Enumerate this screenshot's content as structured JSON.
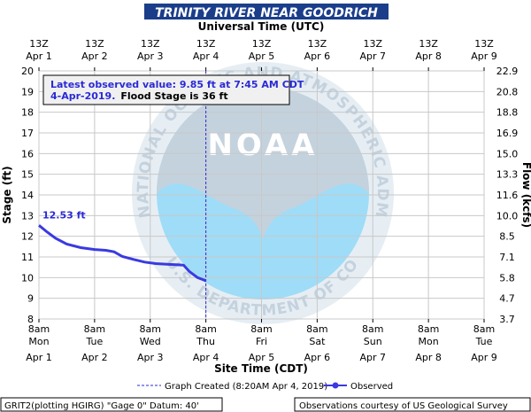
{
  "header": {
    "title": "TRINITY RIVER NEAR GOODRICH"
  },
  "top_axis": {
    "title": "Universal Time (UTC)",
    "hours": [
      "13Z",
      "13Z",
      "13Z",
      "13Z",
      "13Z",
      "13Z",
      "13Z",
      "13Z",
      "13Z"
    ],
    "dates": [
      "Apr 1",
      "Apr 2",
      "Apr 3",
      "Apr 4",
      "Apr 5",
      "Apr 6",
      "Apr 7",
      "Apr 8",
      "Apr 9"
    ]
  },
  "bottom_axis": {
    "title": "Site Time (CDT)",
    "hours": [
      "8am",
      "8am",
      "8am",
      "8am",
      "8am",
      "8am",
      "8am",
      "8am",
      "8am"
    ],
    "days": [
      "Mon",
      "Tue",
      "Wed",
      "Thu",
      "Fri",
      "Sat",
      "Sun",
      "Mon",
      "Tue"
    ],
    "dates": [
      "Apr 1",
      "Apr 2",
      "Apr 3",
      "Apr 4",
      "Apr 5",
      "Apr 6",
      "Apr 7",
      "Apr 8",
      "Apr 9"
    ]
  },
  "info_box": {
    "line1": "Latest observed value: 9.85 ft at 7:45 AM CDT",
    "line2_date": "4-Apr-2019.",
    "line2_flood": "Flood Stage is 36 ft"
  },
  "first_value_label": "12.53 ft",
  "legend": {
    "created": "Graph Created (8:20AM Apr 4, 2019)",
    "observed": "Observed"
  },
  "footer": {
    "left": "GRIT2(plotting HGIRG) \"Gage 0\" Datum: 40'",
    "right": "Observations courtesy of US Geological Survey"
  },
  "watermark": {
    "logo_text": "NOAA",
    "ring_text": "NATIONAL OCEANIC AND ATMOSPHERIC ADMINISTRATION",
    "bottom_text": "U.S. DEPARTMENT OF COMMERCE"
  },
  "colors": {
    "title_bar": "#1b3e8b",
    "observed_line": "#3a3ae0",
    "grid": "#c8c8c8",
    "info_box_bg": "#f0f0f0",
    "info_box_text": "#2a2ad6",
    "watermark_blue": "#9fdcf7",
    "watermark_gray": "#c4d2de"
  },
  "chart_data": {
    "type": "line",
    "title": "TRINITY RIVER NEAR GOODRICH",
    "xlabel": "Site Time (CDT)",
    "x2label": "Universal Time (UTC)",
    "ylabel": "Stage (ft)",
    "y2label": "Flow (kcfs)",
    "xlim_days": [
      0,
      8
    ],
    "ylim": [
      8,
      20
    ],
    "yticks": [
      8,
      9,
      10,
      11,
      12,
      13,
      14,
      15,
      16,
      17,
      18,
      19,
      20
    ],
    "y2ticks": [
      "3.7",
      "4.7",
      "5.8",
      "7.1",
      "8.5",
      "10.0",
      "11.6",
      "13.3",
      "15.0",
      "16.9",
      "18.8",
      "20.8",
      "22.9"
    ],
    "grid": true,
    "legend_position": "bottom",
    "graph_created_marker_days": 3.0,
    "series": [
      {
        "name": "Observed",
        "x_days_since_apr1_8am": [
          0.0,
          0.15,
          0.3,
          0.5,
          0.75,
          1.0,
          1.2,
          1.35,
          1.5,
          1.7,
          1.9,
          2.1,
          2.3,
          2.5,
          2.6,
          2.7,
          2.85,
          3.0
        ],
        "values": [
          12.53,
          12.2,
          11.9,
          11.62,
          11.45,
          11.36,
          11.32,
          11.25,
          11.02,
          10.88,
          10.75,
          10.68,
          10.65,
          10.62,
          10.6,
          10.3,
          10.0,
          9.85
        ]
      }
    ]
  }
}
